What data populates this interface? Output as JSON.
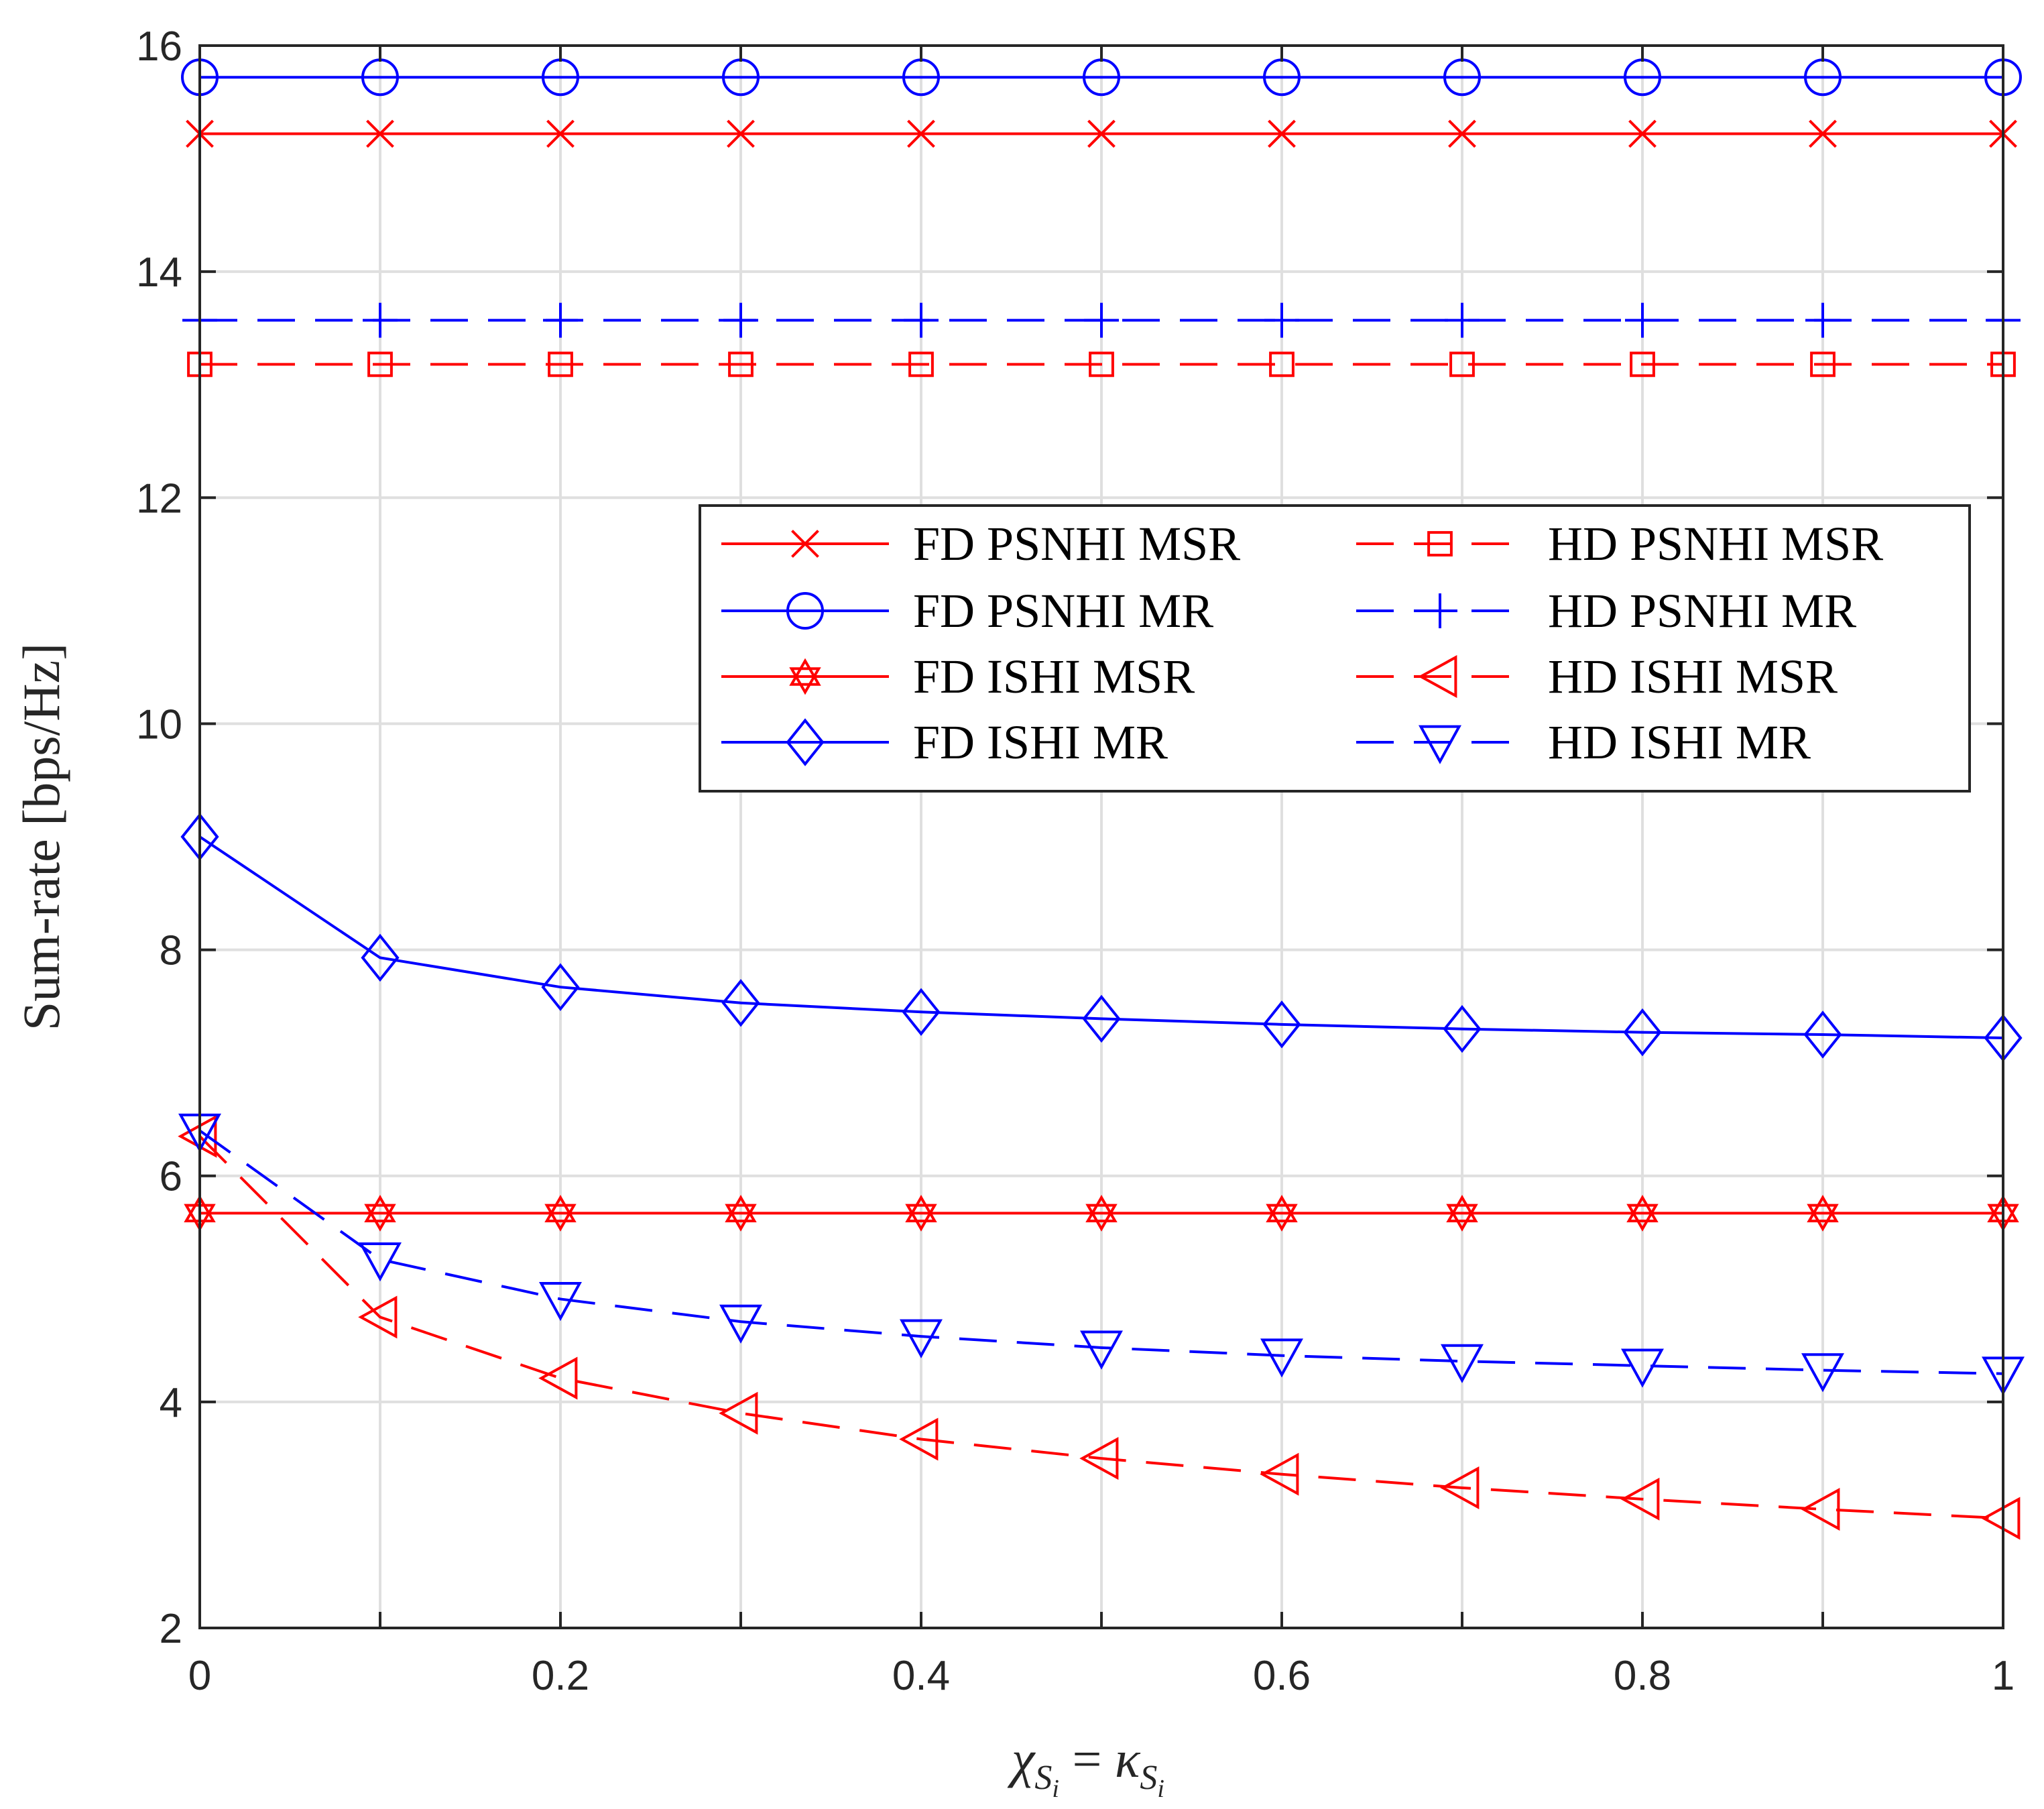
{
  "chart_data": {
    "type": "line",
    "title": "",
    "xlabel_main": "χ",
    "xlabel_sub": "S",
    "xlabel_sub2": "i",
    "xlabel_eq": " = ",
    "xlabel_main2": "κ",
    "ylabel": "Sum-rate [bps/Hz]",
    "xlim": [
      0,
      1
    ],
    "ylim": [
      2,
      16
    ],
    "xticks": [
      0,
      0.1,
      0.2,
      0.3,
      0.4,
      0.5,
      0.6,
      0.7,
      0.8,
      0.9,
      1
    ],
    "xtick_labels": [
      "0",
      "0.2",
      "0.4",
      "0.6",
      "0.8",
      "1"
    ],
    "xtick_label_values": [
      0,
      0.2,
      0.4,
      0.6,
      0.8,
      1
    ],
    "yticks": [
      2,
      4,
      6,
      8,
      10,
      12,
      14,
      16
    ],
    "ytick_labels": [
      "2",
      "4",
      "6",
      "8",
      "10",
      "12",
      "14",
      "16"
    ],
    "grid": true,
    "legend_position": "center-right",
    "x": [
      0,
      0.1,
      0.2,
      0.3,
      0.4,
      0.5,
      0.6,
      0.7,
      0.8,
      0.9,
      1
    ],
    "series": [
      {
        "name": "FD PSNHI MSR",
        "color": "#ff0000",
        "dash": "solid",
        "marker": "x",
        "values": [
          15.22,
          15.22,
          15.22,
          15.22,
          15.22,
          15.22,
          15.22,
          15.22,
          15.22,
          15.22,
          15.22
        ]
      },
      {
        "name": "FD PSNHI MR",
        "color": "#0000ff",
        "dash": "solid",
        "marker": "circle",
        "values": [
          15.72,
          15.72,
          15.72,
          15.72,
          15.72,
          15.72,
          15.72,
          15.72,
          15.72,
          15.72,
          15.72
        ]
      },
      {
        "name": "FD ISHI MSR",
        "color": "#ff0000",
        "dash": "solid",
        "marker": "hexagram",
        "values": [
          5.67,
          5.67,
          5.67,
          5.67,
          5.67,
          5.67,
          5.67,
          5.67,
          5.67,
          5.67,
          5.67
        ]
      },
      {
        "name": "FD ISHI MR",
        "color": "#0000ff",
        "dash": "solid",
        "marker": "diamond",
        "values": [
          9.0,
          7.93,
          7.67,
          7.53,
          7.45,
          7.39,
          7.34,
          7.3,
          7.27,
          7.25,
          7.22
        ]
      },
      {
        "name": "HD PSNHI MSR",
        "color": "#ff0000",
        "dash": "dashed",
        "marker": "square",
        "values": [
          13.18,
          13.18,
          13.18,
          13.18,
          13.18,
          13.18,
          13.18,
          13.18,
          13.18,
          13.18,
          13.18
        ]
      },
      {
        "name": "HD PSNHI MR",
        "color": "#0000ff",
        "dash": "dashed",
        "marker": "plus",
        "values": [
          13.57,
          13.57,
          13.57,
          13.57,
          13.57,
          13.57,
          13.57,
          13.57,
          13.57,
          13.57,
          13.57
        ]
      },
      {
        "name": "HD ISHI MSR",
        "color": "#ff0000",
        "dash": "dashed",
        "marker": "triangle-left",
        "values": [
          6.35,
          4.75,
          4.21,
          3.9,
          3.67,
          3.5,
          3.36,
          3.24,
          3.14,
          3.05,
          2.97
        ]
      },
      {
        "name": "HD ISHI MR",
        "color": "#0000ff",
        "dash": "dashed",
        "marker": "triangle-down",
        "values": [
          6.4,
          5.26,
          4.91,
          4.71,
          4.58,
          4.48,
          4.41,
          4.36,
          4.32,
          4.28,
          4.25
        ]
      }
    ],
    "legend_columns": [
      [
        "FD PSNHI MSR",
        "FD PSNHI MR",
        "FD ISHI MSR",
        "FD ISHI MR"
      ],
      [
        "HD PSNHI MSR",
        "HD PSNHI MR",
        "HD ISHI MSR",
        "HD ISHI MR"
      ]
    ]
  }
}
